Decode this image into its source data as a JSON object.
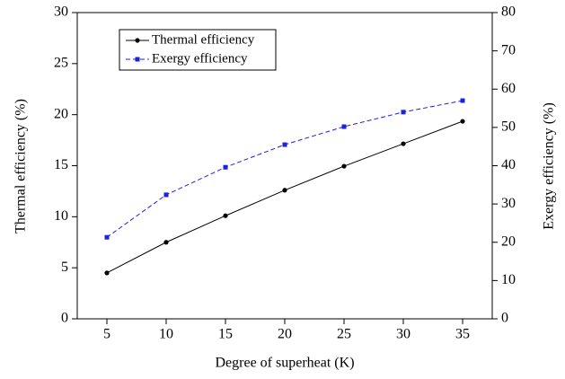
{
  "chart_data": {
    "type": "line",
    "x_label": "Degree of superheat (K)",
    "y_label": "Thermal efficiency (%)",
    "y2_label": "Exergy efficiency (%)",
    "x": [
      5,
      10,
      15,
      20,
      25,
      30,
      35
    ],
    "xlim": [
      2.5,
      37.5
    ],
    "xticks": [
      5,
      10,
      15,
      20,
      25,
      30,
      35
    ],
    "ylim": [
      0,
      30
    ],
    "yticks": [
      0,
      5,
      10,
      15,
      20,
      25,
      30
    ],
    "y2lim": [
      0,
      80
    ],
    "y2ticks": [
      0,
      10,
      20,
      30,
      40,
      50,
      60,
      70,
      80
    ],
    "legend": "upper-left",
    "series": [
      {
        "name": "Thermal efficiency",
        "color": "#000000",
        "marker": "circle",
        "dashed": false,
        "values": [
          4.5,
          7.5,
          10.1,
          12.6,
          14.95,
          17.15,
          19.35
        ]
      },
      {
        "name": "Exergy efficiency",
        "color": "#1f1fe0",
        "marker": "square",
        "dashed": true,
        "axis": "y2",
        "values": [
          21.3,
          32.4,
          39.6,
          45.5,
          50.2,
          54,
          57
        ]
      }
    ]
  }
}
